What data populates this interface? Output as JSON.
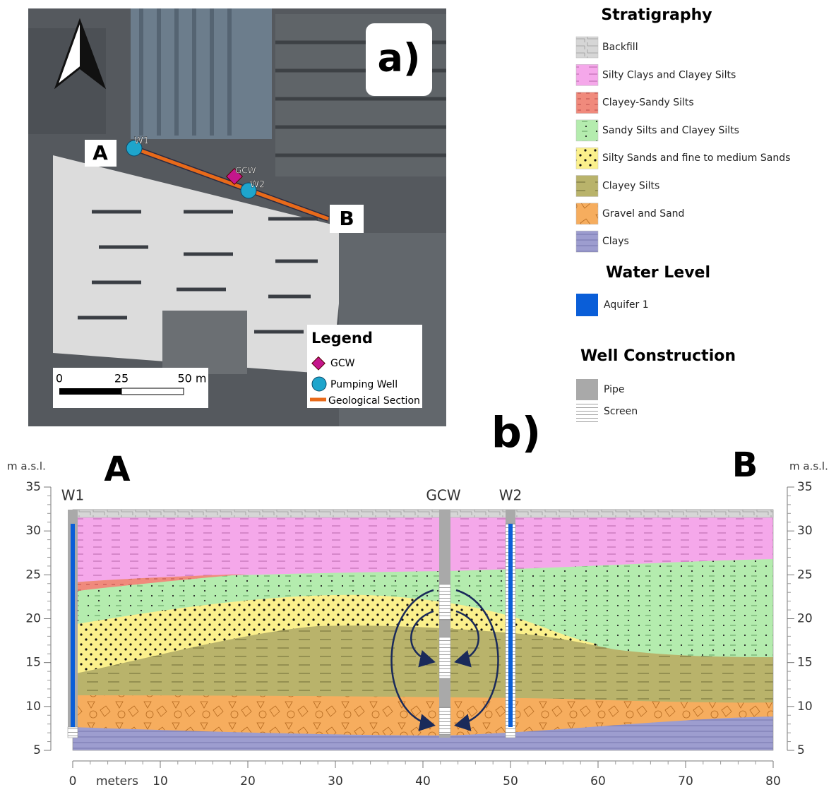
{
  "panel_a": {
    "label": "a)",
    "section_ends": [
      "A",
      "B"
    ],
    "wells": [
      "W1",
      "W2"
    ],
    "gcw": "GCW",
    "scale_bar": [
      "0",
      "25",
      "50 m"
    ],
    "legend": {
      "title": "Legend",
      "items": [
        "GCW",
        "Pumping Well",
        "Geological Section"
      ]
    }
  },
  "legend": {
    "stratigraphy": {
      "title": "Stratigraphy",
      "items": [
        "Backfill",
        "Silty Clays and Clayey Silts",
        "Clayey-Sandy Silts",
        "Sandy Silts and Clayey Silts",
        "Silty Sands and fine to medium Sands",
        "Clayey Silts",
        "Gravel and Sand",
        "Clays"
      ]
    },
    "water_level": {
      "title": "Water Level",
      "items": [
        "Aquifer 1"
      ]
    },
    "well_construction": {
      "title": "Well Construction",
      "items": [
        "Pipe",
        "Screen"
      ]
    }
  },
  "panel_b": {
    "label": "b)",
    "ends": [
      "A",
      "B"
    ],
    "y_axis_label": "m a.s.l.",
    "x_axis_label": "meters",
    "wells": [
      "W1",
      "GCW",
      "W2"
    ],
    "xlim": [
      0,
      80
    ],
    "ylim": [
      5,
      35
    ],
    "xticks": [
      0,
      10,
      20,
      30,
      40,
      50,
      60,
      70,
      80
    ],
    "yticks": [
      5,
      10,
      15,
      20,
      25,
      30,
      35
    ]
  }
}
